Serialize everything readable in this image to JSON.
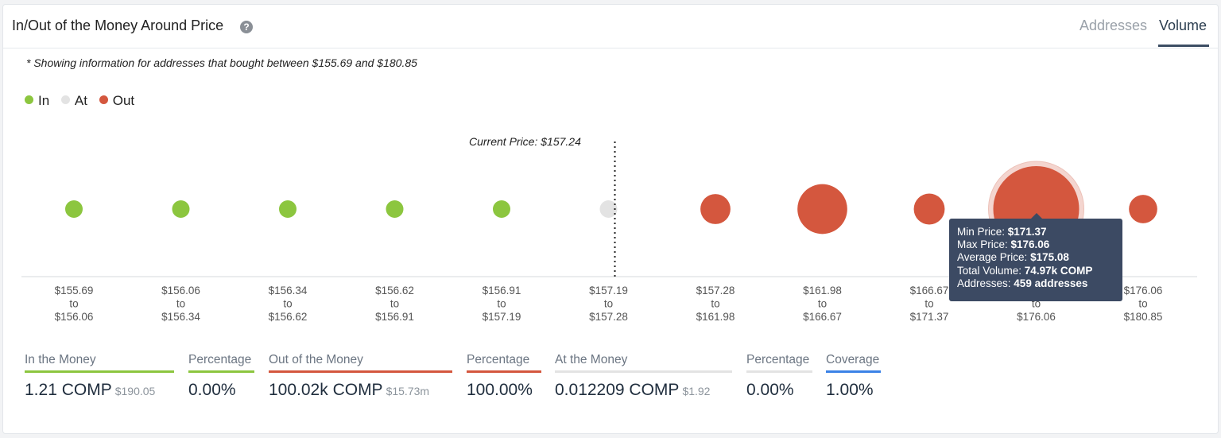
{
  "header": {
    "title": "In/Out of the Money Around Price",
    "help_icon": "question-circle-icon",
    "tabs": [
      {
        "label": "Addresses",
        "active": false
      },
      {
        "label": "Volume",
        "active": true
      }
    ]
  },
  "note": "* Showing information for addresses that bought between $155.69 and $180.85",
  "legend": [
    {
      "label": "In",
      "color": "#8cc63f"
    },
    {
      "label": "At",
      "color": "#e3e3e3"
    },
    {
      "label": "Out",
      "color": "#d4573e"
    }
  ],
  "current_price_label": "Current Price: $157.24",
  "chart_data": {
    "type": "scatter",
    "encoding": "bubble size = volume",
    "x_categories": [
      {
        "from": "$155.69",
        "to": "$156.06"
      },
      {
        "from": "$156.06",
        "to": "$156.34"
      },
      {
        "from": "$156.34",
        "to": "$156.62"
      },
      {
        "from": "$156.62",
        "to": "$156.91"
      },
      {
        "from": "$156.91",
        "to": "$157.19"
      },
      {
        "from": "$157.19",
        "to": "$157.28"
      },
      {
        "from": "$157.28",
        "to": "$161.98"
      },
      {
        "from": "$161.98",
        "to": "$166.67"
      },
      {
        "from": "$166.67",
        "to": "$171.37"
      },
      {
        "from": "$171.37",
        "to": "$176.06"
      },
      {
        "from": "$176.06",
        "to": "$180.85"
      }
    ],
    "status": [
      "in",
      "in",
      "in",
      "in",
      "in",
      "at",
      "out",
      "out",
      "out",
      "out",
      "out"
    ],
    "relative_size": [
      0.2,
      0.2,
      0.2,
      0.2,
      0.2,
      0.2,
      0.35,
      0.58,
      0.36,
      1.0,
      0.33
    ],
    "current_price": 157.24,
    "highlighted_index": 9
  },
  "tooltip": {
    "rows": [
      {
        "key": "Min Price: ",
        "value": "$171.37"
      },
      {
        "key": "Max Price: ",
        "value": "$176.06"
      },
      {
        "key": "Average Price: ",
        "value": "$175.08"
      },
      {
        "key": "Total Volume: ",
        "value": "74.97k COMP"
      },
      {
        "key": "Addresses: ",
        "value": "459 addresses"
      }
    ]
  },
  "stats": [
    {
      "label": "In the Money",
      "value": "1.21 COMP",
      "sub": "$190.05",
      "color": "#8cc63f"
    },
    {
      "label": "Percentage",
      "value": "0.00%",
      "sub": "",
      "color": "#8cc63f"
    },
    {
      "label": "Out of the Money",
      "value": "100.02k COMP",
      "sub": "$15.73m",
      "color": "#d4573e"
    },
    {
      "label": "Percentage",
      "value": "100.00%",
      "sub": "",
      "color": "#d4573e"
    },
    {
      "label": "At the Money",
      "value": "0.012209 COMP",
      "sub": "$1.92",
      "color": "#e3e3e3"
    },
    {
      "label": "Percentage",
      "value": "0.00%",
      "sub": "",
      "color": "#e3e3e3"
    },
    {
      "label": "Coverage",
      "value": "1.00%",
      "sub": "",
      "color": "#3b82e6"
    }
  ]
}
